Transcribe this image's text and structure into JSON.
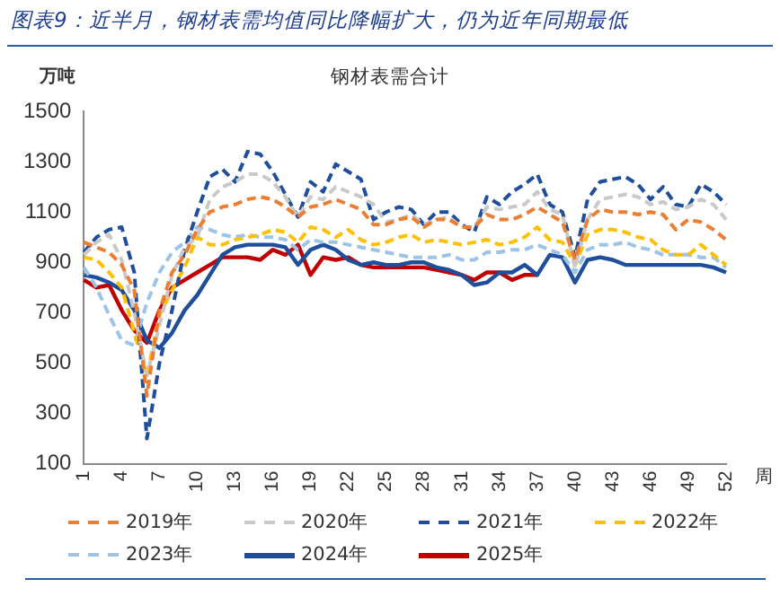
{
  "chart_data": {
    "type": "line",
    "title": "图表9：近半月，钢材表需均值同比降幅扩大，仍为近年同期最低",
    "subtitle": "钢材表需合计",
    "xlabel": "周",
    "ylabel": "万吨",
    "categories": [
      "1",
      null,
      null,
      "4",
      null,
      null,
      "7",
      null,
      null,
      "10",
      null,
      null,
      "13",
      null,
      null,
      "16",
      null,
      null,
      "19",
      null,
      null,
      "22",
      null,
      null,
      "25",
      null,
      null,
      "28",
      null,
      null,
      "31",
      null,
      null,
      "34",
      null,
      null,
      "37",
      null,
      null,
      "40",
      null,
      null,
      "43",
      null,
      null,
      "46",
      null,
      null,
      "49",
      null,
      null,
      "52"
    ],
    "ylim": [
      100,
      1500
    ],
    "yticks": [
      100,
      300,
      500,
      700,
      900,
      1100,
      1300,
      1500
    ],
    "grid": false,
    "legend": "bottom",
    "marker": "none",
    "series": [
      {
        "name": "2019年",
        "color": "#ed7d31",
        "line_style": "dashed",
        "values": [
          980,
          960,
          940,
          890,
          790,
          370,
          710,
          860,
          930,
          1030,
          1100,
          1120,
          1130,
          1150,
          1160,
          1150,
          1120,
          1080,
          1120,
          1130,
          1150,
          1130,
          1110,
          1050,
          1050,
          1070,
          1080,
          1040,
          1070,
          1070,
          1040,
          1040,
          1090,
          1070,
          1070,
          1090,
          1120,
          1090,
          1060,
          910,
          1070,
          1110,
          1100,
          1100,
          1090,
          1100,
          1090,
          1030,
          1070,
          1060,
          1030,
          990
        ]
      },
      {
        "name": "2020年",
        "color": "#c9c9c9",
        "line_style": "dashed",
        "values": [
          930,
          980,
          1010,
          910,
          700,
          450,
          650,
          850,
          960,
          1000,
          1150,
          1200,
          1220,
          1250,
          1250,
          1220,
          1160,
          1080,
          1160,
          1150,
          1200,
          1180,
          1160,
          1130,
          1060,
          1070,
          1090,
          1050,
          1070,
          1080,
          1040,
          1040,
          1120,
          1110,
          1120,
          1130,
          1180,
          1110,
          1090,
          880,
          1070,
          1150,
          1160,
          1170,
          1160,
          1130,
          1140,
          1110,
          1120,
          1150,
          1130,
          1070
        ]
      },
      {
        "name": "2021年",
        "color": "#1f4e9c",
        "line_style": "dashed",
        "values": [
          940,
          1000,
          1030,
          1040,
          860,
          200,
          500,
          710,
          950,
          1100,
          1240,
          1270,
          1220,
          1340,
          1330,
          1260,
          1170,
          1080,
          1220,
          1180,
          1290,
          1260,
          1230,
          1070,
          1100,
          1120,
          1110,
          1050,
          1100,
          1100,
          1050,
          1020,
          1160,
          1130,
          1180,
          1210,
          1250,
          1130,
          1100,
          920,
          1150,
          1220,
          1230,
          1240,
          1210,
          1150,
          1200,
          1130,
          1120,
          1210,
          1180,
          1130
        ]
      },
      {
        "name": "2022年",
        "color": "#ffc000",
        "line_style": "dashed",
        "values": [
          920,
          910,
          860,
          800,
          620,
          450,
          690,
          790,
          880,
          1000,
          970,
          970,
          990,
          1000,
          1010,
          1030,
          1020,
          980,
          1040,
          1030,
          1000,
          1030,
          990,
          970,
          980,
          1000,
          1010,
          980,
          990,
          980,
          970,
          980,
          990,
          970,
          980,
          1000,
          1040,
          990,
          980,
          890,
          1010,
          1030,
          1030,
          1020,
          1000,
          990,
          950,
          930,
          930,
          970,
          930,
          890
        ]
      },
      {
        "name": "2023年",
        "color": "#9dc3e6",
        "line_style": "dashed",
        "values": [
          880,
          800,
          690,
          590,
          570,
          740,
          860,
          940,
          980,
          1040,
          1030,
          1010,
          1000,
          1010,
          1000,
          1000,
          990,
          950,
          990,
          980,
          980,
          970,
          960,
          950,
          940,
          930,
          920,
          920,
          920,
          930,
          910,
          910,
          940,
          940,
          950,
          950,
          970,
          950,
          930,
          860,
          950,
          970,
          970,
          980,
          960,
          950,
          930,
          930,
          930,
          920,
          920,
          880
        ]
      },
      {
        "name": "2024年",
        "color": "#1f4e9c",
        "line_style": "solid",
        "values": [
          850,
          840,
          820,
          790,
          710,
          590,
          560,
          620,
          710,
          770,
          850,
          930,
          960,
          970,
          970,
          970,
          960,
          890,
          950,
          970,
          950,
          910,
          890,
          900,
          890,
          890,
          900,
          900,
          880,
          870,
          850,
          810,
          820,
          860,
          860,
          890,
          850,
          930,
          920,
          820,
          910,
          920,
          910,
          890,
          890,
          890,
          890,
          890,
          890,
          890,
          880,
          860
        ]
      },
      {
        "name": "2025年",
        "color": "#c00000",
        "line_style": "solid",
        "values": [
          830,
          800,
          810,
          710,
          630,
          580,
          710,
          800,
          830,
          860,
          890,
          920,
          920,
          920,
          910,
          950,
          930,
          970,
          850,
          920,
          910,
          920,
          890,
          880,
          880,
          880,
          880,
          880,
          870,
          860,
          850,
          830,
          860,
          860,
          830,
          850,
          850,
          null,
          null,
          null,
          null,
          null,
          null,
          null,
          null,
          null,
          null,
          null,
          null,
          null,
          null,
          null
        ]
      }
    ]
  }
}
